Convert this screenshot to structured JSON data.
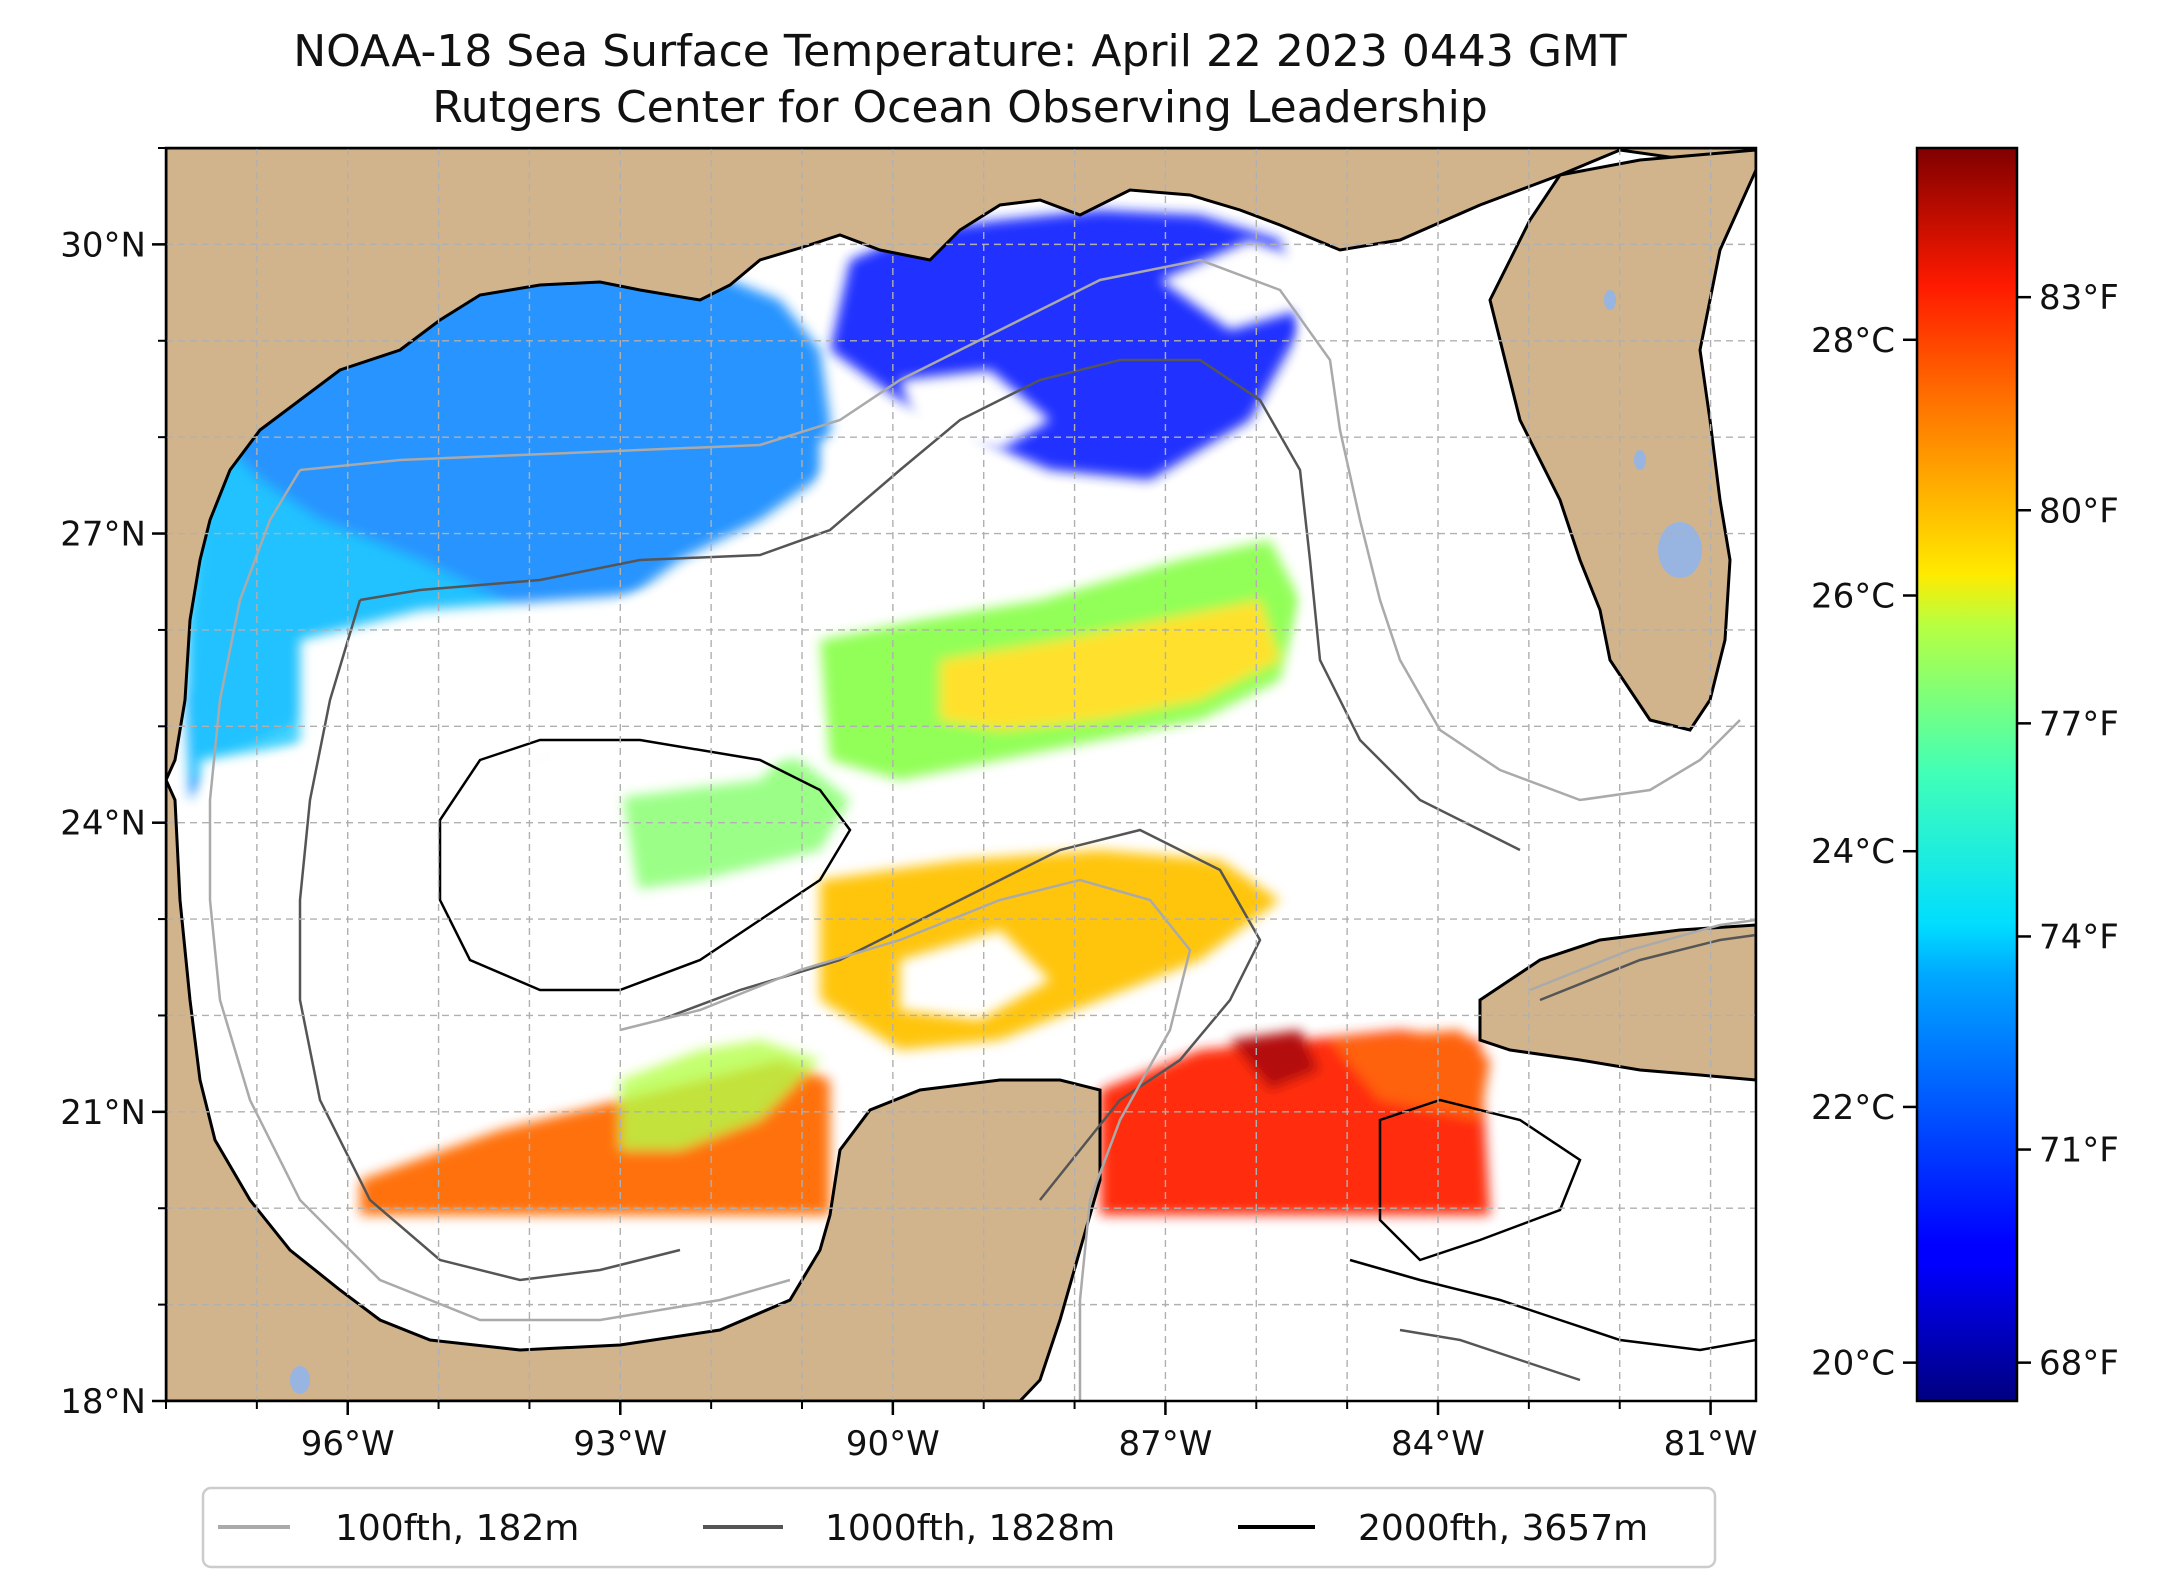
{
  "title": {
    "line1": "NOAA-18 Sea Surface Temperature: April 22 2023 0443 GMT",
    "line2": "Rutgers Center for Ocean Observing Leadership"
  },
  "map": {
    "lon_range": [
      -98.0,
      -80.5
    ],
    "lat_range": [
      18.0,
      31.0
    ],
    "lat_ticks": [
      {
        "lat": 30,
        "label": "30°N"
      },
      {
        "lat": 27,
        "label": "27°N"
      },
      {
        "lat": 24,
        "label": "24°N"
      },
      {
        "lat": 21,
        "label": "21°N"
      },
      {
        "lat": 18,
        "label": "18°N"
      }
    ],
    "lon_ticks": [
      {
        "lon": -96,
        "label": "96°W"
      },
      {
        "lon": -93,
        "label": "93°W"
      },
      {
        "lon": -90,
        "label": "90°W"
      },
      {
        "lon": -87,
        "label": "87°W"
      },
      {
        "lon": -84,
        "label": "84°W"
      },
      {
        "lon": -81,
        "label": "81°W"
      }
    ],
    "land_color": "#d2b48c",
    "water_color": "#ffffff",
    "grid": "dashed",
    "sst_swath_bottom_lat": 20.0
  },
  "colorbar": {
    "colormap": "jet",
    "min_c": 19.7,
    "max_c": 29.5,
    "celsius_ticks": [
      {
        "value": 28,
        "label": "28°C"
      },
      {
        "value": 26,
        "label": "26°C"
      },
      {
        "value": 24,
        "label": "24°C"
      },
      {
        "value": 22,
        "label": "22°C"
      },
      {
        "value": 20,
        "label": "20°C"
      }
    ],
    "fahrenheit_ticks": [
      {
        "value": 83,
        "label": "83°F"
      },
      {
        "value": 80,
        "label": "80°F"
      },
      {
        "value": 77,
        "label": "77°F"
      },
      {
        "value": 74,
        "label": "74°F"
      },
      {
        "value": 71,
        "label": "71°F"
      },
      {
        "value": 68,
        "label": "68°F"
      }
    ]
  },
  "legend": {
    "placement": "bottom",
    "items": [
      {
        "label": "100fth, 182m",
        "color": "#aaaaaa"
      },
      {
        "label": "1000fth, 1828m",
        "color": "#555555"
      },
      {
        "label": "2000fth, 3657m",
        "color": "#000000"
      }
    ]
  }
}
